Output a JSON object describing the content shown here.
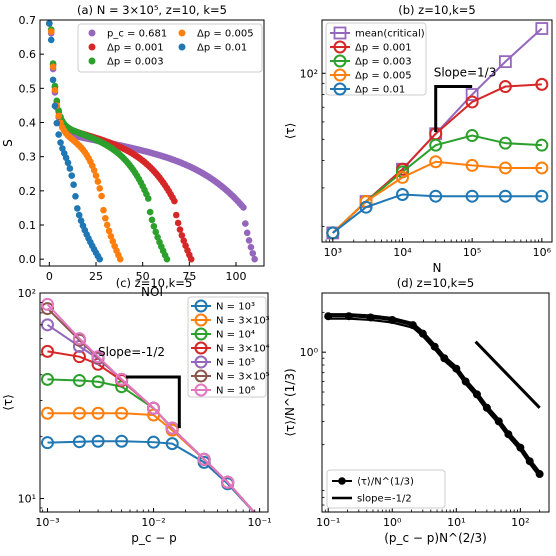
{
  "chart_data": [
    {
      "panel": "a",
      "type": "scatter",
      "title": "(a) N = 3×10⁵, z=10, k=5",
      "xlabel": "NOI",
      "ylabel": "S",
      "xlim": [
        -5,
        115
      ],
      "ylim": [
        -0.02,
        0.7
      ],
      "xticks": [
        0,
        25,
        50,
        75,
        100
      ],
      "yticks": [
        0.0,
        0.1,
        0.2,
        0.3,
        0.4,
        0.5,
        0.6,
        0.7
      ],
      "xtick_labels": [
        "0",
        "25",
        "50",
        "75",
        "100"
      ],
      "ytick_labels": [
        "0.0",
        "0.1",
        "0.2",
        "0.3",
        "0.4",
        "0.5",
        "0.6",
        "0.7"
      ],
      "legend_position": "top-right",
      "legend_columns": 2,
      "series": [
        {
          "name": "p_c = 0.681",
          "color": "#9467bd",
          "end": 110,
          "knee": 104,
          "plateau": 0.245,
          "drop": 0.245
        },
        {
          "name": "Δp = 0.001",
          "color": "#d62728",
          "end": 76,
          "knee": 67,
          "plateau": 0.265,
          "drop": 0.27
        },
        {
          "name": "Δp = 0.003",
          "color": "#2ca02c",
          "end": 63,
          "knee": 53,
          "plateau": 0.27,
          "drop": 0.285
        },
        {
          "name": "Δp = 0.005",
          "color": "#ff7f0e",
          "end": 38,
          "knee": 28,
          "plateau": 0.26,
          "drop": 0.29
        },
        {
          "name": "Δp = 0.01",
          "color": "#1f77b4",
          "end": 27,
          "knee": 14,
          "plateau": 0.21,
          "drop": 0.31
        }
      ]
    },
    {
      "panel": "b",
      "type": "line",
      "title": "(b) z=10,k=5",
      "xlabel": "N",
      "ylabel": "⟨τ⟩",
      "xscale": "log",
      "yscale": "log",
      "xlim": [
        700,
        1400000
      ],
      "ylim": [
        17,
        175
      ],
      "xticks": [
        1000,
        10000,
        100000,
        1000000
      ],
      "xtick_labels": [
        "10³",
        "10⁴",
        "10⁵",
        "10⁶"
      ],
      "yticks": [
        100
      ],
      "ytick_labels": [
        "10²"
      ],
      "legend_position": "top-left",
      "annotation": "Slope=1/3",
      "slope_triangle": {
        "x1": 30000,
        "x2": 100000,
        "y_top": 87,
        "y_bottom": 54
      },
      "x": [
        1000,
        3000,
        10000,
        30000,
        100000,
        300000,
        1000000
      ],
      "series": [
        {
          "name": "mean(critical)",
          "color": "#9467bd",
          "marker": "square",
          "values": [
            18.7,
            26.0,
            36.5,
            53.0,
            80.0,
            113.0,
            160.0
          ]
        },
        {
          "name": "Δp = 0.001",
          "color": "#d62728",
          "marker": "circle",
          "values": [
            18.7,
            26.0,
            36.5,
            53.0,
            74.0,
            87.0,
            89.0
          ]
        },
        {
          "name": "Δp = 0.003",
          "color": "#2ca02c",
          "marker": "circle",
          "values": [
            18.7,
            26.0,
            35.5,
            47.0,
            52.0,
            48.0,
            47.0
          ]
        },
        {
          "name": "Δp = 0.005",
          "color": "#ff7f0e",
          "marker": "circle",
          "values": [
            18.7,
            26.0,
            33.5,
            39.5,
            38.0,
            37.0,
            37.0
          ]
        },
        {
          "name": "Δp = 0.01",
          "color": "#1f77b4",
          "marker": "circle",
          "values": [
            18.7,
            24.5,
            28.0,
            27.5,
            27.5,
            27.5,
            27.5
          ]
        }
      ]
    },
    {
      "panel": "c",
      "type": "line",
      "title": "(c) z=10,k=5",
      "xlabel": "p_c − p",
      "ylabel": "⟨τ⟩",
      "xscale": "log",
      "yscale": "log",
      "xlim": [
        0.00085,
        0.12
      ],
      "ylim": [
        8.6,
        100
      ],
      "xticks": [
        0.001,
        0.01,
        0.1
      ],
      "xtick_labels": [
        "10⁻³",
        "10⁻²",
        "10⁻¹"
      ],
      "yticks": [
        10,
        100
      ],
      "ytick_labels": [
        "10¹",
        "10²"
      ],
      "legend_position": "top-right",
      "annotation": "Slope=-1/2",
      "slope_triangle": {
        "x1": 0.0055,
        "x2": 0.0175,
        "y_top": 39,
        "y_bottom": 22
      },
      "x": [
        0.001,
        0.002,
        0.003,
        0.005,
        0.01,
        0.015,
        0.03,
        0.05,
        0.1
      ],
      "series": [
        {
          "name": "N = 10³",
          "color": "#1f77b4",
          "values": [
            18.7,
            18.9,
            19.0,
            19.0,
            18.8,
            18.5,
            15.0,
            11.8,
            8.0
          ]
        },
        {
          "name": "N = 3×10³",
          "color": "#ff7f0e",
          "values": [
            26.0,
            26.0,
            26.0,
            26.0,
            25.5,
            21.5,
            15.5,
            12.0,
            8.0
          ]
        },
        {
          "name": "N = 10⁴",
          "color": "#2ca02c",
          "values": [
            38.0,
            37.5,
            37.0,
            35.0,
            27.5,
            22.0,
            15.5,
            12.0,
            8.0
          ]
        },
        {
          "name": "N = 3×10⁴",
          "color": "#d62728",
          "values": [
            52.0,
            49.0,
            45.0,
            37.5,
            27.5,
            22.0,
            15.5,
            12.0,
            8.0
          ]
        },
        {
          "name": "N = 10⁵",
          "color": "#9467bd",
          "values": [
            70.0,
            55.0,
            48.0,
            38.0,
            27.5,
            22.0,
            15.5,
            12.0,
            8.0
          ]
        },
        {
          "name": "N = 3×10⁵",
          "color": "#8c564b",
          "values": [
            84.0,
            59.0,
            48.5,
            38.0,
            27.5,
            22.0,
            15.5,
            12.0,
            8.0
          ]
        },
        {
          "name": "N = 10⁶",
          "color": "#e377c2",
          "values": [
            88.0,
            60.0,
            49.0,
            38.0,
            27.5,
            22.0,
            15.5,
            12.0,
            8.0
          ]
        }
      ]
    },
    {
      "panel": "d",
      "type": "scatter",
      "title": "(d) z=10,k=5",
      "xlabel": "(p_c − p)N^(2/3)",
      "ylabel": "⟨τ⟩/N^(1/3)",
      "xscale": "log",
      "yscale": "log",
      "xlim": [
        0.08,
        280
      ],
      "ylim": [
        0.062,
        2.8
      ],
      "xticks": [
        0.1,
        1,
        10,
        100
      ],
      "xtick_labels": [
        "10⁻¹",
        "10⁰",
        "10¹",
        "10²"
      ],
      "yticks": [
        1
      ],
      "ytick_labels": [
        "10⁰"
      ],
      "legend_position": "bottom-left",
      "series": [
        {
          "name": "⟨τ⟩/N^(1/3)",
          "color": "#000000",
          "marker": "circle",
          "x": [
            0.1,
            0.21,
            0.46,
            1.0,
            2.1,
            3.0,
            4.6,
            6.5,
            10,
            14,
            21,
            30,
            46,
            65,
            100,
            140,
            200
          ],
          "values": [
            1.87,
            1.87,
            1.83,
            1.75,
            1.6,
            1.38,
            1.1,
            0.9,
            0.75,
            0.6,
            0.48,
            0.38,
            0.3,
            0.24,
            0.19,
            0.15,
            0.12
          ]
        },
        {
          "name": "slope=-1/2",
          "color": "#000000",
          "marker": "none",
          "x": [
            20,
            200
          ],
          "values": [
            1.2,
            0.38
          ]
        }
      ]
    }
  ]
}
